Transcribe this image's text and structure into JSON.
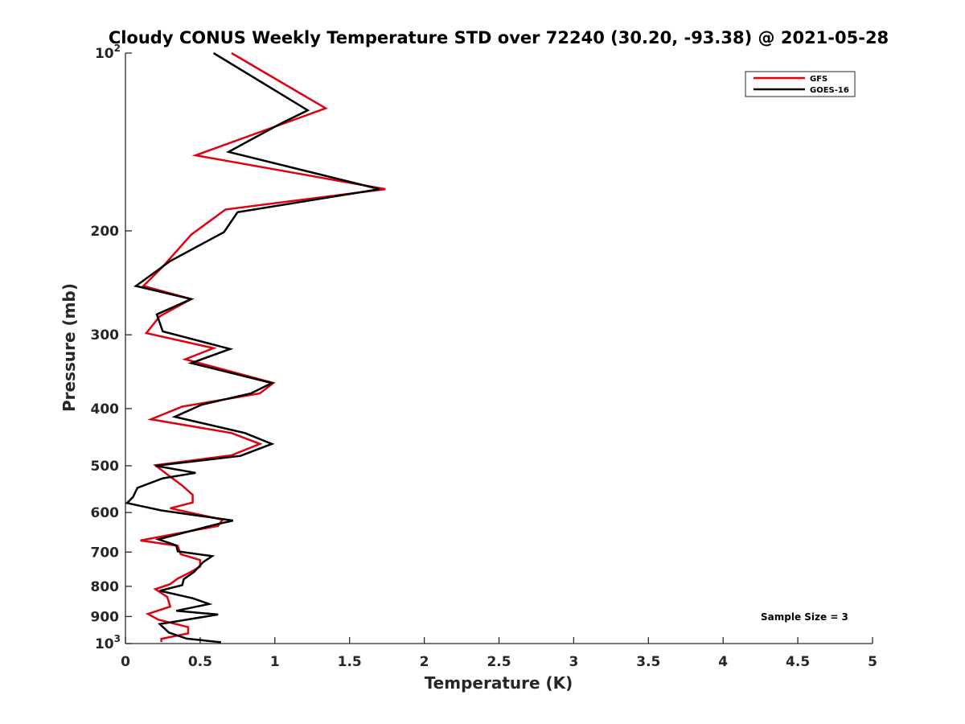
{
  "chart_data": {
    "type": "line",
    "title": "Cloudy CONUS Weekly Temperature STD over 72240 (30.20, -93.38) @ 2021-05-28",
    "xlabel": "Temperature (K)",
    "ylabel": "Pressure (mb)",
    "xlim": [
      0,
      5
    ],
    "ylim": [
      1000,
      100
    ],
    "y_scale": "log",
    "y_reversed": true,
    "x_ticks": [
      "0",
      "0.5",
      "1",
      "1.5",
      "2",
      "2.5",
      "3",
      "3.5",
      "4",
      "4.5",
      "5"
    ],
    "x_tick_values": [
      0,
      0.5,
      1,
      1.5,
      2,
      2.5,
      3,
      3.5,
      4,
      4.5,
      5
    ],
    "y_ticks": [
      {
        "value": 100,
        "base": "10",
        "exp": "2"
      },
      {
        "value": 200,
        "label": "200"
      },
      {
        "value": 300,
        "label": "300"
      },
      {
        "value": 400,
        "label": "400"
      },
      {
        "value": 500,
        "label": "500"
      },
      {
        "value": 600,
        "label": "600"
      },
      {
        "value": 700,
        "label": "700"
      },
      {
        "value": 800,
        "label": "800"
      },
      {
        "value": 900,
        "label": "900"
      },
      {
        "value": 1000,
        "base": "10",
        "exp": "3"
      }
    ],
    "legend_position": "top-right",
    "grid": false,
    "series": [
      {
        "name": "GFS",
        "color": "#e0000f",
        "points": [
          [
            0.71,
            100
          ],
          [
            1.34,
            124
          ],
          [
            0.47,
            149
          ],
          [
            1.74,
            170
          ],
          [
            0.67,
            184
          ],
          [
            0.44,
            203
          ],
          [
            0.25,
            230
          ],
          [
            0.12,
            248
          ],
          [
            0.44,
            261
          ],
          [
            0.23,
            279
          ],
          [
            0.14,
            298
          ],
          [
            0.59,
            316
          ],
          [
            0.4,
            330
          ],
          [
            0.99,
            362
          ],
          [
            0.9,
            377
          ],
          [
            0.38,
            397
          ],
          [
            0.17,
            417
          ],
          [
            0.71,
            440
          ],
          [
            0.9,
            459
          ],
          [
            0.71,
            480
          ],
          [
            0.2,
            499
          ],
          [
            0.28,
            517
          ],
          [
            0.38,
            540
          ],
          [
            0.45,
            560
          ],
          [
            0.45,
            577
          ],
          [
            0.3,
            590
          ],
          [
            0.65,
            617
          ],
          [
            0.62,
            632
          ],
          [
            0.1,
            669
          ],
          [
            0.35,
            683
          ],
          [
            0.37,
            706
          ],
          [
            0.5,
            722
          ],
          [
            0.5,
            741
          ],
          [
            0.43,
            758
          ],
          [
            0.35,
            776
          ],
          [
            0.3,
            793
          ],
          [
            0.2,
            809
          ],
          [
            0.28,
            834
          ],
          [
            0.3,
            866
          ],
          [
            0.15,
            891
          ],
          [
            0.22,
            911
          ],
          [
            0.42,
            938
          ],
          [
            0.42,
            961
          ],
          [
            0.24,
            982
          ],
          [
            0.24,
            994
          ]
        ]
      },
      {
        "name": "GOES-16",
        "color": "#000000",
        "points": [
          [
            0.59,
            100
          ],
          [
            1.22,
            125
          ],
          [
            1.03,
            132
          ],
          [
            0.69,
            147
          ],
          [
            1.7,
            170
          ],
          [
            0.75,
            186
          ],
          [
            0.66,
            201
          ],
          [
            0.3,
            225
          ],
          [
            0.07,
            248
          ],
          [
            0.44,
            261
          ],
          [
            0.21,
            277
          ],
          [
            0.25,
            296
          ],
          [
            0.7,
            317
          ],
          [
            0.44,
            335
          ],
          [
            0.98,
            362
          ],
          [
            0.84,
            377
          ],
          [
            0.51,
            394
          ],
          [
            0.33,
            413
          ],
          [
            0.8,
            440
          ],
          [
            0.98,
            459
          ],
          [
            0.77,
            481
          ],
          [
            0.2,
            500
          ],
          [
            0.47,
            514
          ],
          [
            0.25,
            525
          ],
          [
            0.08,
            545
          ],
          [
            0.05,
            565
          ],
          [
            0.01,
            578
          ],
          [
            0.24,
            595
          ],
          [
            0.72,
            619
          ],
          [
            0.6,
            629
          ],
          [
            0.22,
            666
          ],
          [
            0.34,
            682
          ],
          [
            0.35,
            698
          ],
          [
            0.58,
            711
          ],
          [
            0.52,
            728
          ],
          [
            0.46,
            756
          ],
          [
            0.39,
            778
          ],
          [
            0.38,
            796
          ],
          [
            0.23,
            814
          ],
          [
            0.45,
            838
          ],
          [
            0.56,
            857
          ],
          [
            0.34,
            880
          ],
          [
            0.62,
            893
          ],
          [
            0.23,
            927
          ],
          [
            0.29,
            958
          ],
          [
            0.41,
            981
          ],
          [
            0.64,
            995
          ]
        ]
      }
    ],
    "annotation": "Sample Size = 3"
  }
}
